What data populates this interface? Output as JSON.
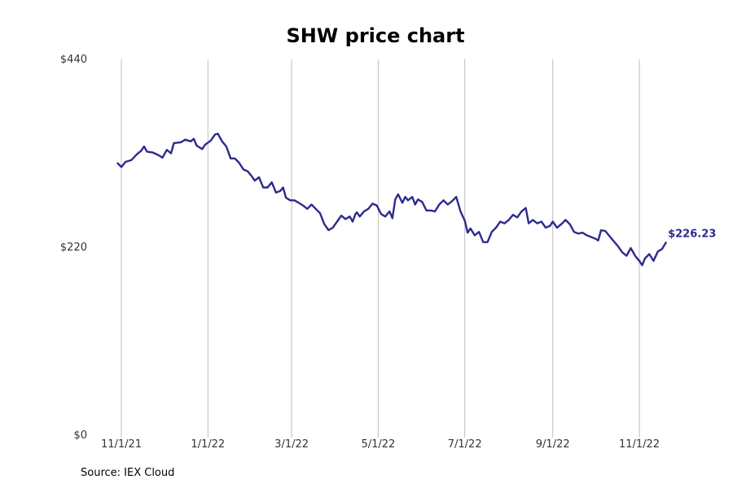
{
  "chart_data": {
    "type": "line",
    "title": "SHW price chart",
    "xlabel": "",
    "ylabel": "",
    "ylim": [
      0,
      440
    ],
    "y_ticks": [
      {
        "value": 0,
        "label": "$0"
      },
      {
        "value": 220,
        "label": "$220"
      },
      {
        "value": 440,
        "label": "$440"
      }
    ],
    "x_ticks": [
      {
        "date": "2021-11-01",
        "label": "11/1/21"
      },
      {
        "date": "2022-01-01",
        "label": "1/1/22"
      },
      {
        "date": "2022-03-01",
        "label": "3/1/22"
      },
      {
        "date": "2022-05-01",
        "label": "5/1/22"
      },
      {
        "date": "2022-07-01",
        "label": "7/1/22"
      },
      {
        "date": "2022-09-01",
        "label": "9/1/22"
      },
      {
        "date": "2022-11-01",
        "label": "11/1/22"
      }
    ],
    "grid": "vertical",
    "line_color": "#2e2a8f",
    "end_label": "$226.23",
    "series": [
      {
        "points": [
          [
            "2021-10-29",
            319
          ],
          [
            "2021-11-01",
            314
          ],
          [
            "2021-11-04",
            320
          ],
          [
            "2021-11-08",
            322
          ],
          [
            "2021-11-12",
            329
          ],
          [
            "2021-11-15",
            333
          ],
          [
            "2021-11-17",
            338
          ],
          [
            "2021-11-19",
            332
          ],
          [
            "2021-11-23",
            331
          ],
          [
            "2021-11-27",
            328
          ],
          [
            "2021-11-30",
            325
          ],
          [
            "2021-12-03",
            334
          ],
          [
            "2021-12-06",
            330
          ],
          [
            "2021-12-08",
            342
          ],
          [
            "2021-12-13",
            343
          ],
          [
            "2021-12-16",
            346
          ],
          [
            "2021-12-20",
            344
          ],
          [
            "2021-12-22",
            347
          ],
          [
            "2021-12-24",
            339
          ],
          [
            "2021-12-28",
            335
          ],
          [
            "2021-12-30",
            340
          ],
          [
            "2022-01-03",
            345
          ],
          [
            "2022-01-06",
            352
          ],
          [
            "2022-01-08",
            353
          ],
          [
            "2022-01-11",
            344
          ],
          [
            "2022-01-14",
            338
          ],
          [
            "2022-01-17",
            324
          ],
          [
            "2022-01-20",
            324
          ],
          [
            "2022-01-23",
            319
          ],
          [
            "2022-01-26",
            311
          ],
          [
            "2022-01-29",
            309
          ],
          [
            "2022-02-01",
            303
          ],
          [
            "2022-02-03",
            298
          ],
          [
            "2022-02-06",
            302
          ],
          [
            "2022-02-09",
            290
          ],
          [
            "2022-02-12",
            290
          ],
          [
            "2022-02-15",
            296
          ],
          [
            "2022-02-18",
            284
          ],
          [
            "2022-02-21",
            286
          ],
          [
            "2022-02-23",
            290
          ],
          [
            "2022-02-25",
            278
          ],
          [
            "2022-02-28",
            275
          ],
          [
            "2022-03-03",
            275
          ],
          [
            "2022-03-06",
            272
          ],
          [
            "2022-03-09",
            269
          ],
          [
            "2022-03-12",
            265
          ],
          [
            "2022-03-15",
            270
          ],
          [
            "2022-03-18",
            265
          ],
          [
            "2022-03-21",
            260
          ],
          [
            "2022-03-24",
            247
          ],
          [
            "2022-03-27",
            240
          ],
          [
            "2022-03-30",
            243
          ],
          [
            "2022-04-02",
            250
          ],
          [
            "2022-04-05",
            257
          ],
          [
            "2022-04-08",
            253
          ],
          [
            "2022-04-11",
            256
          ],
          [
            "2022-04-13",
            250
          ],
          [
            "2022-04-15",
            259
          ],
          [
            "2022-04-16",
            261
          ],
          [
            "2022-04-18",
            256
          ],
          [
            "2022-04-21",
            262
          ],
          [
            "2022-04-24",
            265
          ],
          [
            "2022-04-27",
            271
          ],
          [
            "2022-04-30",
            269
          ],
          [
            "2022-05-03",
            259
          ],
          [
            "2022-05-06",
            256
          ],
          [
            "2022-05-09",
            262
          ],
          [
            "2022-05-11",
            254
          ],
          [
            "2022-05-13",
            276
          ],
          [
            "2022-05-15",
            282
          ],
          [
            "2022-05-18",
            272
          ],
          [
            "2022-05-20",
            279
          ],
          [
            "2022-05-22",
            275
          ],
          [
            "2022-05-25",
            279
          ],
          [
            "2022-05-27",
            270
          ],
          [
            "2022-05-29",
            276
          ],
          [
            "2022-06-01",
            273
          ],
          [
            "2022-06-04",
            263
          ],
          [
            "2022-06-07",
            263
          ],
          [
            "2022-06-10",
            262
          ],
          [
            "2022-06-13",
            270
          ],
          [
            "2022-06-16",
            275
          ],
          [
            "2022-06-19",
            270
          ],
          [
            "2022-06-22",
            274
          ],
          [
            "2022-06-25",
            279
          ],
          [
            "2022-06-28",
            262
          ],
          [
            "2022-07-01",
            251
          ],
          [
            "2022-07-03",
            237
          ],
          [
            "2022-07-05",
            242
          ],
          [
            "2022-07-08",
            234
          ],
          [
            "2022-07-11",
            238
          ],
          [
            "2022-07-14",
            226
          ],
          [
            "2022-07-17",
            226
          ],
          [
            "2022-07-20",
            238
          ],
          [
            "2022-07-23",
            243
          ],
          [
            "2022-07-26",
            250
          ],
          [
            "2022-07-29",
            248
          ],
          [
            "2022-08-01",
            252
          ],
          [
            "2022-08-04",
            258
          ],
          [
            "2022-08-07",
            255
          ],
          [
            "2022-08-10",
            262
          ],
          [
            "2022-08-13",
            266
          ],
          [
            "2022-08-15",
            248
          ],
          [
            "2022-08-18",
            252
          ],
          [
            "2022-08-21",
            248
          ],
          [
            "2022-08-24",
            250
          ],
          [
            "2022-08-27",
            243
          ],
          [
            "2022-08-30",
            245
          ],
          [
            "2022-09-01",
            250
          ],
          [
            "2022-09-04",
            243
          ],
          [
            "2022-09-07",
            247
          ],
          [
            "2022-09-10",
            252
          ],
          [
            "2022-09-13",
            247
          ],
          [
            "2022-09-16",
            238
          ],
          [
            "2022-09-19",
            236
          ],
          [
            "2022-09-22",
            237
          ],
          [
            "2022-09-25",
            234
          ],
          [
            "2022-09-28",
            232
          ],
          [
            "2022-10-01",
            230
          ],
          [
            "2022-10-03",
            228
          ],
          [
            "2022-10-05",
            240
          ],
          [
            "2022-10-08",
            239
          ],
          [
            "2022-10-11",
            233
          ],
          [
            "2022-10-14",
            227
          ],
          [
            "2022-10-17",
            221
          ],
          [
            "2022-10-20",
            214
          ],
          [
            "2022-10-23",
            210
          ],
          [
            "2022-10-26",
            219
          ],
          [
            "2022-10-29",
            210
          ],
          [
            "2022-11-01",
            204
          ],
          [
            "2022-11-03",
            199
          ],
          [
            "2022-11-05",
            207
          ],
          [
            "2022-11-08",
            212
          ],
          [
            "2022-11-11",
            204
          ],
          [
            "2022-11-14",
            215
          ],
          [
            "2022-11-17",
            218
          ],
          [
            "2022-11-20",
            226.23
          ]
        ]
      }
    ]
  },
  "source_note": "Source: IEX Cloud"
}
